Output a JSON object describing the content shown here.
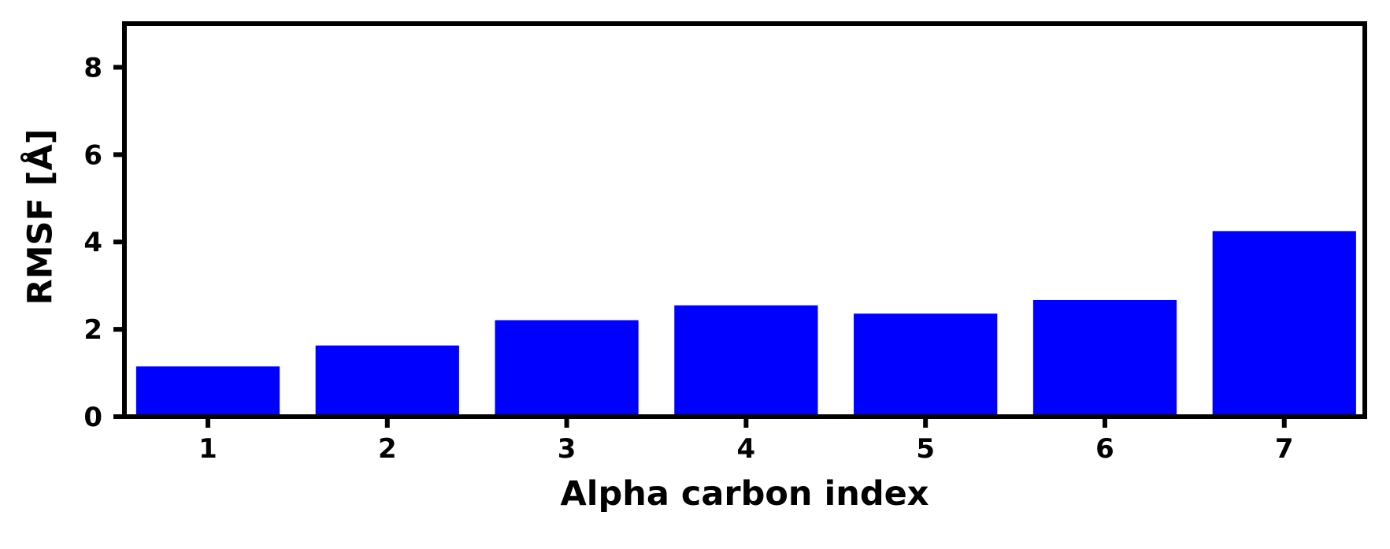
{
  "chart_data": {
    "type": "bar",
    "categories": [
      "1",
      "2",
      "3",
      "4",
      "5",
      "6",
      "7"
    ],
    "values": [
      1.15,
      1.63,
      2.21,
      2.55,
      2.36,
      2.67,
      4.25
    ],
    "xlabel": "Alpha carbon index",
    "ylabel": "RMSF [Å]",
    "ylim": [
      0,
      9
    ],
    "yticks": [
      0,
      2,
      4,
      6,
      8
    ],
    "bar_color": "#0000ff",
    "grid": false
  }
}
